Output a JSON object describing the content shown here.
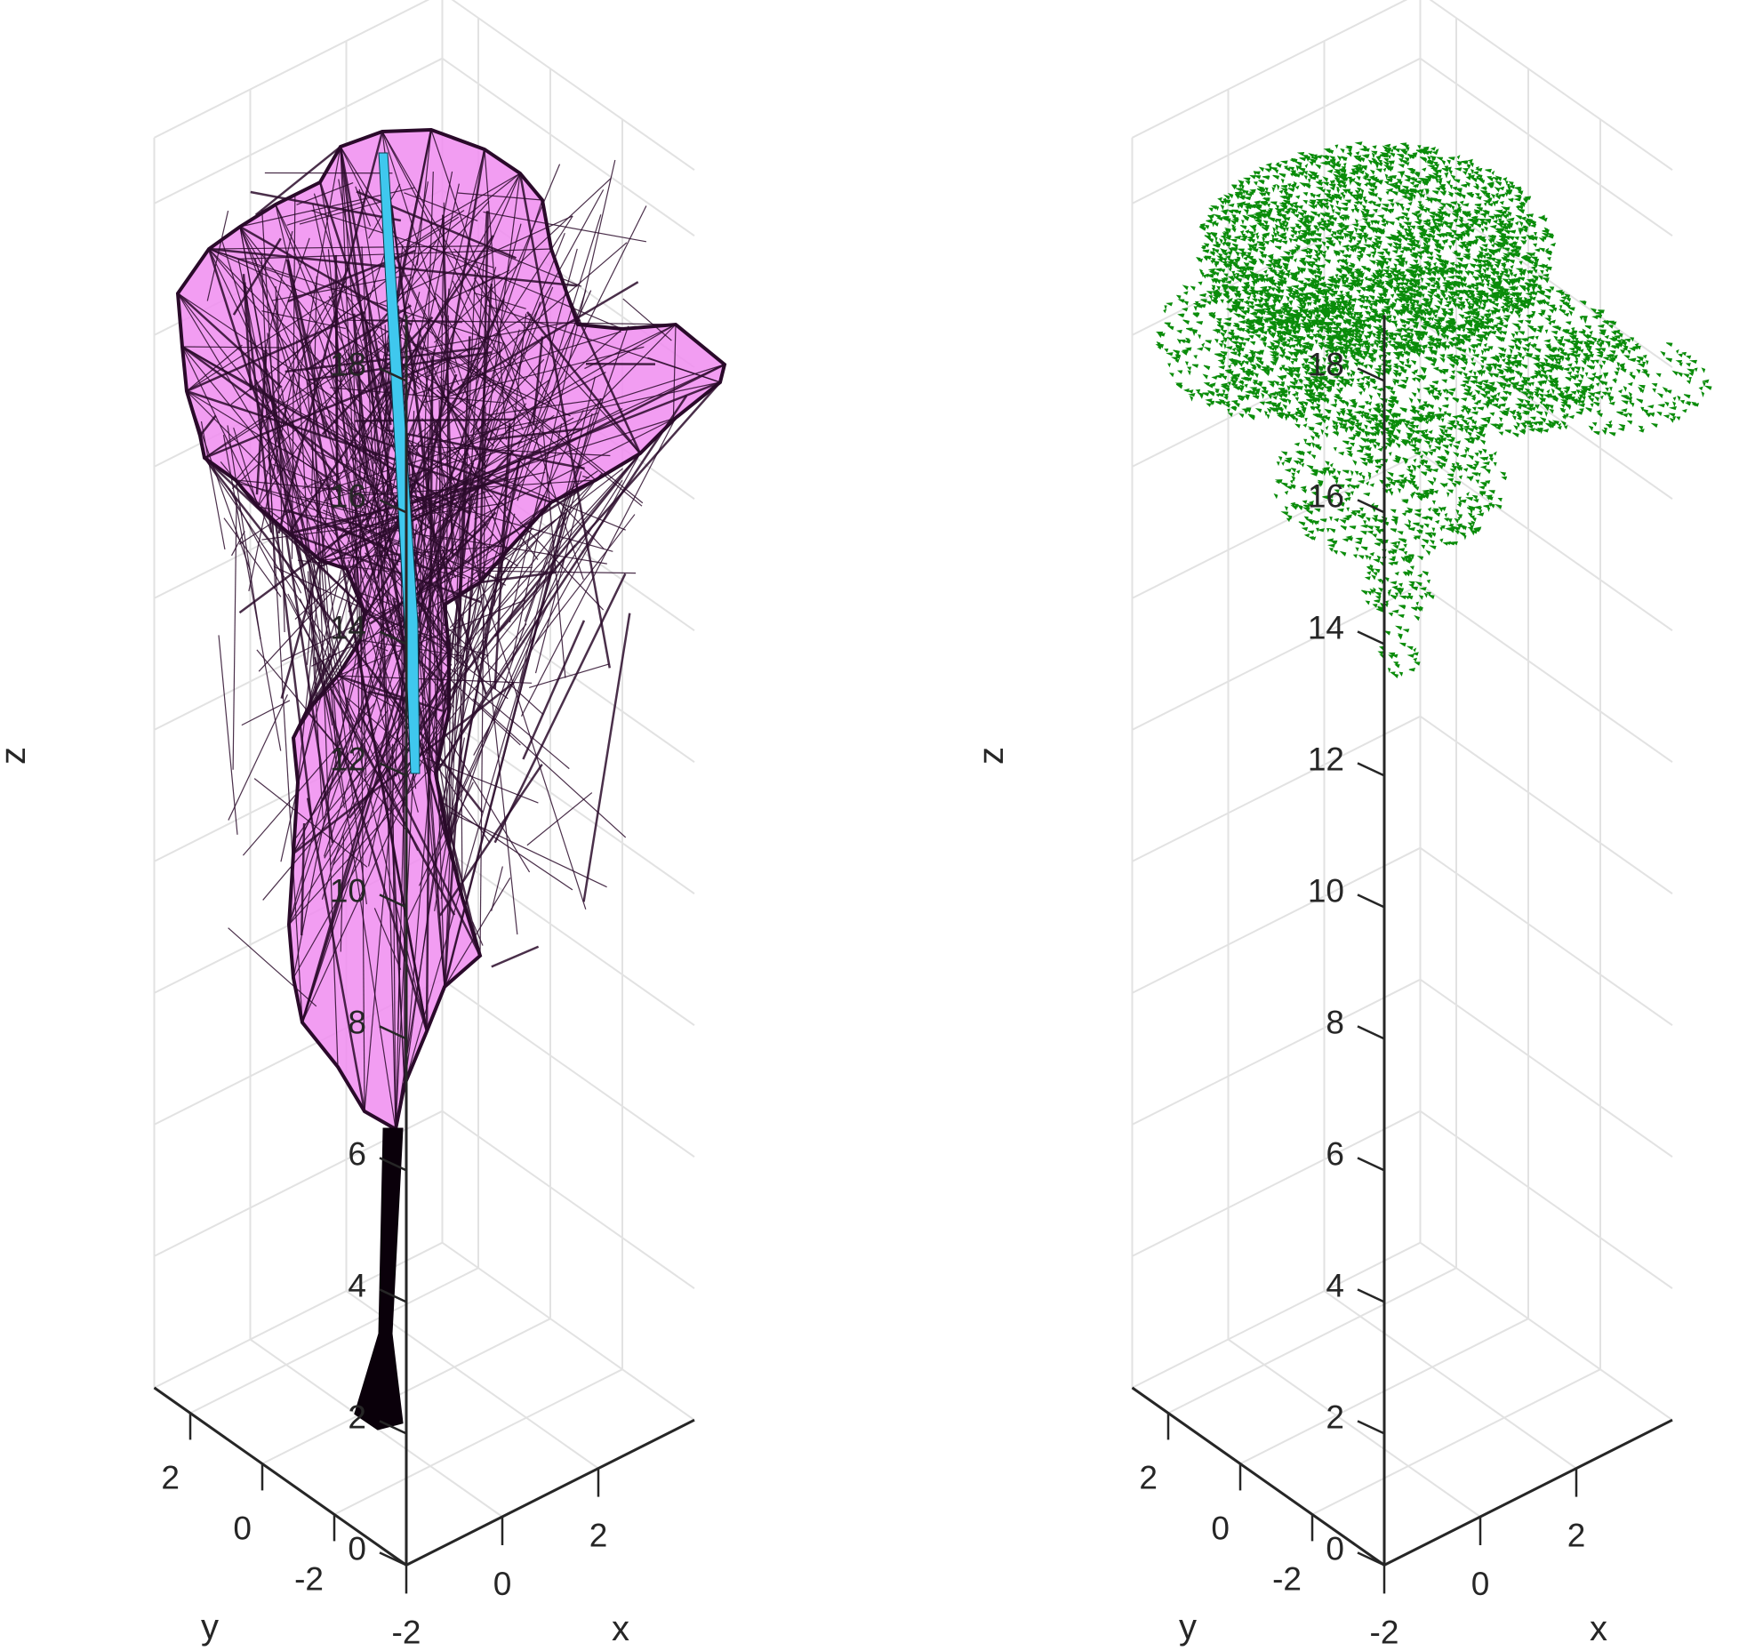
{
  "chart_data": [
    {
      "type": "scatter",
      "projection": "3d",
      "title": "",
      "xlabel": "x",
      "ylabel": "y",
      "zlabel": "z",
      "xticks": [
        -2,
        0,
        2
      ],
      "yticks": [
        -2,
        0,
        2
      ],
      "zticks": [
        0,
        2,
        4,
        6,
        8,
        10,
        12,
        14,
        16,
        18
      ],
      "xlim": [
        -2,
        4
      ],
      "ylim": [
        -4,
        3
      ],
      "zlim": [
        0,
        19
      ],
      "grid": "on",
      "colors": {
        "hull_fill": "#f08cf0",
        "hull_edge": "#2a0a2a",
        "stem": "#0a000a",
        "axis_line": "#3fc8ee"
      },
      "series": [],
      "description_elements": [
        "alpha-shape mesh of tree canopy and trunk",
        "cyan central axis line"
      ]
    },
    {
      "type": "scatter",
      "projection": "3d",
      "title": "",
      "xlabel": "x",
      "ylabel": "y",
      "zlabel": "z",
      "xticks": [
        -2,
        0,
        2
      ],
      "yticks": [
        -2,
        0,
        2
      ],
      "zticks": [
        0,
        2,
        4,
        6,
        8,
        10,
        12,
        14,
        16,
        18
      ],
      "xlim": [
        -2,
        4
      ],
      "ylim": [
        -4,
        3
      ],
      "zlim": [
        0,
        19
      ],
      "grid": "on",
      "colors": {
        "points": "#0a8c0a"
      },
      "series": [],
      "point_cloud": {
        "z_range": [
          9.7,
          19
        ],
        "x_range": [
          -2.5,
          4
        ],
        "y_range": [
          -3,
          3
        ]
      }
    }
  ]
}
